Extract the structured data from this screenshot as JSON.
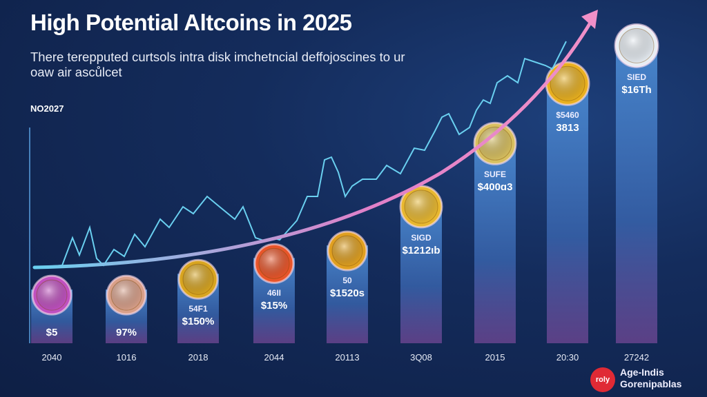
{
  "header": {
    "title": "High Potential Altcoins in 2025",
    "subtitle": "There terepputed curtsols intra disk imchetncial deffojoscines to ur oaw air ascůlcet",
    "axis_label": "NO2027"
  },
  "chart_data": {
    "type": "bar",
    "title": "High Potential Altcoins in 2025",
    "ylabel": "NO2027",
    "categories": [
      "2040",
      "1016",
      "2018",
      "2044",
      "20113",
      "3Q08",
      "2015",
      "20:30",
      "27242"
    ],
    "values": [
      17,
      17,
      22,
      27,
      31,
      45,
      65,
      84,
      96
    ],
    "ylim": [
      0,
      100
    ],
    "top_labels": [
      "",
      "",
      "54F1",
      "46II",
      "50",
      "SIGD",
      "SUFE",
      "$5460",
      "SIED"
    ],
    "value_labels": [
      "$5",
      "97%",
      "$150%",
      "$15%",
      "$1520s",
      "$1212ıb",
      "$400ɑ3",
      "3813",
      "$16Th"
    ],
    "coin_colors": [
      "#c050c0",
      "#d9a08a",
      "#d8a520",
      "#e8552a",
      "#e0a020",
      "#e8b830",
      "#d8c060",
      "#e8b020",
      "#e8eef4"
    ],
    "grid": false,
    "legend": "none",
    "trend": "rising arrow"
  },
  "brand": {
    "logo_text": "roly",
    "line1": "Age-Indis",
    "line2": "Gorenipablas"
  },
  "colors": {
    "bar": "#3f78c0",
    "accent_pink": "#e080d0",
    "accent_cyan": "#5cc8f0",
    "baseline": "#e84a6a"
  }
}
